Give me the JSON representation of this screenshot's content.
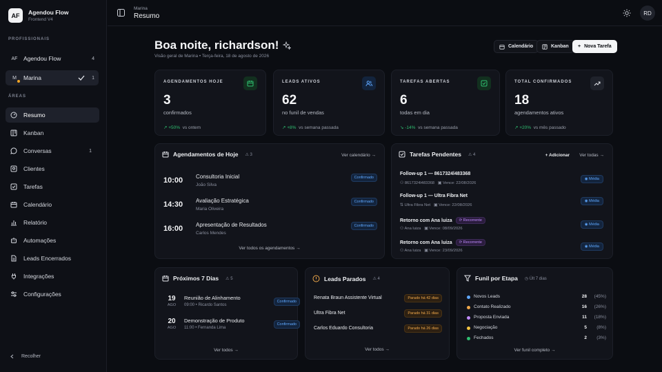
{
  "brand": {
    "logo": "AF",
    "name": "Agendou Flow",
    "subtitle": "Frontend V4"
  },
  "sidebar": {
    "professionals_label": "PROFISSIONAIS",
    "professionals": [
      {
        "avatar": "AF",
        "name": "Agendou Flow",
        "count": "4"
      },
      {
        "avatar": "M",
        "name": "Marina",
        "count": "1"
      }
    ],
    "areas_label": "ÁREAS",
    "items": [
      {
        "label": "Resumo",
        "icon": "dashboard-icon"
      },
      {
        "label": "Kanban",
        "icon": "kanban-icon"
      },
      {
        "label": "Conversas",
        "icon": "chat-icon",
        "count": "1"
      },
      {
        "label": "Clientes",
        "icon": "users-icon"
      },
      {
        "label": "Tarefas",
        "icon": "checkbox-icon"
      },
      {
        "label": "Calendário",
        "icon": "calendar-icon"
      },
      {
        "label": "Relatório",
        "icon": "bar-chart-icon"
      },
      {
        "label": "Automações",
        "icon": "automation-icon"
      },
      {
        "label": "Leads Encerrados",
        "icon": "file-icon"
      },
      {
        "label": "Integrações",
        "icon": "plug-icon"
      },
      {
        "label": "Configurações",
        "icon": "sliders-icon"
      }
    ],
    "collapse_label": "Recolher"
  },
  "header": {
    "breadcrumb": "Marina",
    "title": "Resumo",
    "avatar": "RD"
  },
  "greeting": {
    "title": "Boa noite, richardson!",
    "subtitle": "Visão geral de Marina • Terça-feira, 18 de agosto de 2026"
  },
  "top_buttons": {
    "calendar": "Calendário",
    "kanban": "Kanban",
    "new_task": "Nova Tarefa"
  },
  "stats": [
    {
      "label": "AGENDAMENTOS HOJE",
      "value": "3",
      "desc": "confirmados",
      "trend": "+50%",
      "trend_note": "vs ontem",
      "icon": "calendar-icon",
      "color": "#2fbf71"
    },
    {
      "label": "LEADS ATIVOS",
      "value": "62",
      "desc": "no funil de vendas",
      "trend": "+8%",
      "trend_note": "vs semana passada",
      "icon": "users-icon",
      "color": "#5fa8ff"
    },
    {
      "label": "TAREFAS ABERTAS",
      "value": "6",
      "desc": "todas em dia",
      "trend": "-14%",
      "trend_note": "vs semana passada",
      "icon": "checkbox-icon",
      "color": "#2fbf71"
    },
    {
      "label": "TOTAL CONFIRMADOS",
      "value": "18",
      "desc": "agendamentos ativos",
      "trend": "+20%",
      "trend_note": "vs mês passado",
      "icon": "trending-up-icon",
      "color": "#e6e8ee"
    }
  ],
  "appointments": {
    "title": "Agendamentos de Hoje",
    "count": "3",
    "link": "Ver calendário",
    "items": [
      {
        "time": "10:00",
        "title": "Consultoria Inicial",
        "who": "João Silva",
        "status": "Confirmado"
      },
      {
        "time": "14:30",
        "title": "Avaliação Estratégica",
        "who": "Maria Oliveira",
        "status": "Confirmado"
      },
      {
        "time": "16:00",
        "title": "Apresentação de Resultados",
        "who": "Carlos Mendes",
        "status": "Confirmado"
      }
    ],
    "footer": "Ver todos os agendamentos"
  },
  "tasks": {
    "title": "Tarefas Pendentes",
    "count": "4",
    "add": "Adicionar",
    "link": "Ver todas",
    "items": [
      {
        "title": "Follow-up 1 — 8617324l483368",
        "tag": "",
        "owner": "8617324l483368",
        "due": "Vence: 22/08/2026",
        "priority": "Média"
      },
      {
        "title": "Follow-up 1 — Ultra Fibra Net",
        "tag": "",
        "owner": "Ultra Fibra Net",
        "due": "Vence: 22/08/2026",
        "priority": "Média"
      },
      {
        "title": "Retorno com Ana luiza",
        "tag": "Recorrente",
        "owner": "Ana luiza",
        "due": "Vence: 08/09/2026",
        "priority": "Média"
      },
      {
        "title": "Retorno com Ana luiza",
        "tag": "Recorrente",
        "owner": "Ana luiza",
        "due": "Vence: 23/09/2026",
        "priority": "Média"
      }
    ]
  },
  "next_days": {
    "title": "Próximos 7 Dias",
    "count": "5",
    "footer": "Ver todos",
    "items": [
      {
        "day": "19",
        "month": "AGO",
        "title": "Reunião de Alinhamento",
        "time": "09:00",
        "who": "Ricardo Santos",
        "status": "Confirmado"
      },
      {
        "day": "20",
        "month": "AGO",
        "title": "Demonstração de Produto",
        "time": "11:00",
        "who": "Fernanda Lima",
        "status": "Confirmado"
      }
    ]
  },
  "stalled": {
    "title": "Leads Parados",
    "count": "4",
    "footer": "Ver todos",
    "items": [
      {
        "name": "Renata Braun Assistente Virtual",
        "badge": "Parado há 42 dias"
      },
      {
        "name": "Ultra Fibra Net",
        "badge": "Parado há 31 dias"
      },
      {
        "name": "Carlos Eduardo Consultoria",
        "badge": "Parado há 26 dias"
      }
    ]
  },
  "funnel": {
    "title": "Funil por Etapa",
    "period": "Últ 7 dias",
    "footer": "Ver funil completo",
    "items": [
      {
        "name": "Novos Leads",
        "value": "28",
        "pct": "(45%)",
        "color": "#5fa8ff"
      },
      {
        "name": "Contato Realizado",
        "value": "16",
        "pct": "(26%)",
        "color": "#f0a84a"
      },
      {
        "name": "Proposta Enviada",
        "value": "11",
        "pct": "(18%)",
        "color": "#c08bff"
      },
      {
        "name": "Negociação",
        "value": "5",
        "pct": "(8%)",
        "color": "#f5c542"
      },
      {
        "name": "Fechados",
        "value": "2",
        "pct": "(3%)",
        "color": "#2fbf71"
      }
    ]
  }
}
